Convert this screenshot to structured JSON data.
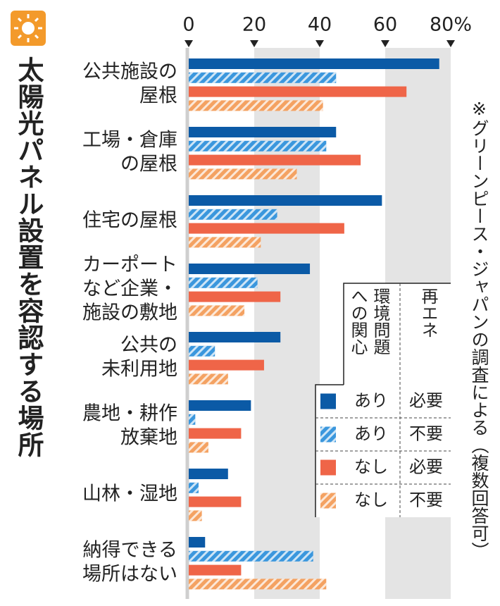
{
  "chart_data": {
    "type": "hbar",
    "title": "太陽光パネル設置を容認する場所",
    "note": "※グリーンピース・ジャパンの調査による（複数回答可）",
    "categories": [
      [
        "公共施設の",
        "屋根"
      ],
      [
        "工場・倉庫",
        "の屋根"
      ],
      [
        "住宅の屋根"
      ],
      [
        "カーポート",
        "など企業・",
        "施設の敷地"
      ],
      [
        "公共の",
        "未利用地"
      ],
      [
        "農地・耕作",
        "放棄地"
      ],
      [
        "山林・湿地"
      ],
      [
        "納得できる",
        "場所はない"
      ]
    ],
    "legend_header": [
      "環境問題への関心",
      "再エネ"
    ],
    "series": [
      {
        "name": [
          "あり",
          "必要"
        ],
        "color": "#0b5aa6",
        "hatch": false,
        "values": [
          76.5,
          45,
          59,
          37,
          28,
          19,
          12,
          5
        ]
      },
      {
        "name": [
          "あり",
          "不要"
        ],
        "color": "#3b97dd",
        "hatch": true,
        "values": [
          45,
          42,
          27,
          21,
          8,
          2,
          3,
          38
        ]
      },
      {
        "name": [
          "なし",
          "必要"
        ],
        "color": "#ef6548",
        "hatch": false,
        "values": [
          66.5,
          52.5,
          47.5,
          28,
          23,
          16,
          16,
          16
        ]
      },
      {
        "name": [
          "なし",
          "不要"
        ],
        "color": "#f4a262",
        "hatch": true,
        "values": [
          41,
          33,
          22,
          17,
          12,
          6,
          4,
          42
        ]
      }
    ],
    "xlim": [
      0,
      80
    ],
    "xticks": [
      0,
      20,
      40,
      60,
      {
        "value": 80,
        "label": "80%"
      }
    ],
    "grid": true
  }
}
